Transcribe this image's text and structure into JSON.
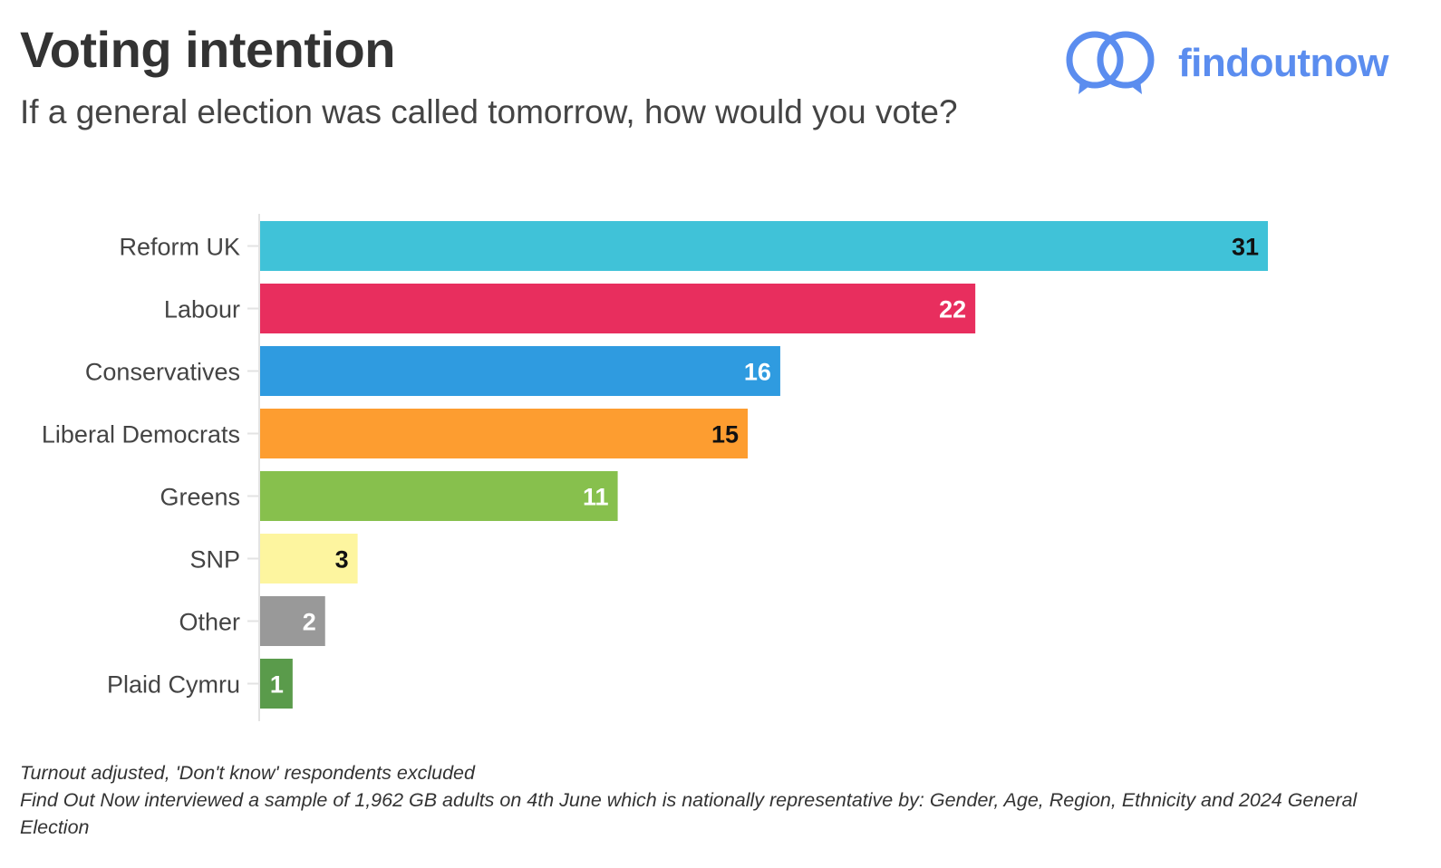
{
  "header": {
    "title": "Voting intention",
    "subtitle": "If a general election was called tomorrow, how would you vote?"
  },
  "brand": {
    "name": "findoutnow",
    "color": "#5b8def",
    "icon": "interlocking-rings-icon"
  },
  "chart_data": {
    "type": "bar",
    "orientation": "horizontal",
    "categories": [
      "Reform UK",
      "Labour",
      "Conservatives",
      "Liberal Democrats",
      "Greens",
      "SNP",
      "Other",
      "Plaid Cymru"
    ],
    "values": [
      31,
      22,
      16,
      15,
      11,
      3,
      2,
      1
    ],
    "colors": [
      "#40c2d8",
      "#e82e5e",
      "#2f9be0",
      "#fd9d30",
      "#87c04d",
      "#fdf59f",
      "#999999",
      "#5a9b4b"
    ],
    "label_colors": [
      "#111111",
      "#ffffff",
      "#ffffff",
      "#111111",
      "#ffffff",
      "#111111",
      "#ffffff",
      "#ffffff"
    ],
    "xlim": [
      0,
      31
    ],
    "grid": false,
    "title": "Voting intention",
    "xlabel": "",
    "ylabel": ""
  },
  "notes": {
    "line1": "Turnout adjusted, 'Don't know' respondents excluded",
    "line2": "Find Out Now interviewed a sample of 1,962 GB adults on 4th June which is nationally representative by: Gender, Age, Region, Ethnicity and 2024 General Election"
  }
}
